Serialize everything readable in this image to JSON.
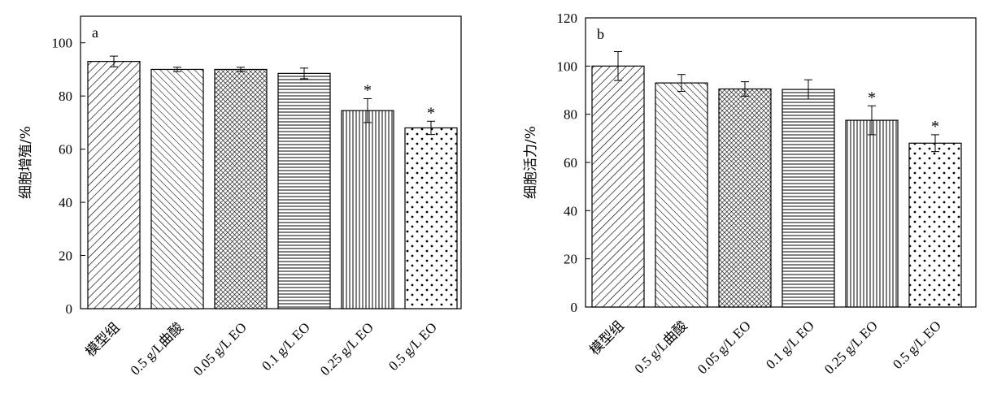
{
  "chart_data": [
    {
      "type": "bar",
      "panel_label": "a",
      "ylabel": "细胞增殖/%",
      "xlabel": "",
      "ylim": [
        0,
        110
      ],
      "yticks": [
        0,
        20,
        40,
        60,
        80,
        100
      ],
      "categories": [
        "模型组",
        "0.5 g/L曲酸",
        "0.05 g/L EO",
        "0.1 g/L EO",
        "0.25 g/L EO",
        "0.5 g/L EO"
      ],
      "values": [
        93,
        90,
        90,
        88.5,
        74.5,
        68
      ],
      "errors": [
        2,
        0.8,
        0.8,
        2,
        4.5,
        2.5
      ],
      "significance": [
        "",
        "",
        "",
        "",
        "*",
        "*"
      ],
      "patterns": [
        "diag-right",
        "diag-left",
        "crosshatch",
        "horizontal",
        "vertical",
        "dots"
      ]
    },
    {
      "type": "bar",
      "panel_label": "b",
      "ylabel": "细胞活力/%",
      "xlabel": "",
      "ylim": [
        0,
        120
      ],
      "yticks": [
        0,
        20,
        40,
        60,
        80,
        100,
        120
      ],
      "categories": [
        "模型组",
        "0.5 g/L曲酸",
        "0.05 g/L EO",
        "0.1 g/L EO",
        "0.25 g/L EO",
        "0.5 g/L EO"
      ],
      "values": [
        100,
        93,
        90.5,
        90.3,
        77.5,
        68
      ],
      "errors": [
        6,
        3.5,
        3,
        4,
        6,
        3.5
      ],
      "significance": [
        "",
        "",
        "",
        "",
        "*",
        "*"
      ],
      "patterns": [
        "diag-right",
        "diag-left",
        "crosshatch",
        "horizontal",
        "vertical",
        "dots"
      ]
    }
  ]
}
